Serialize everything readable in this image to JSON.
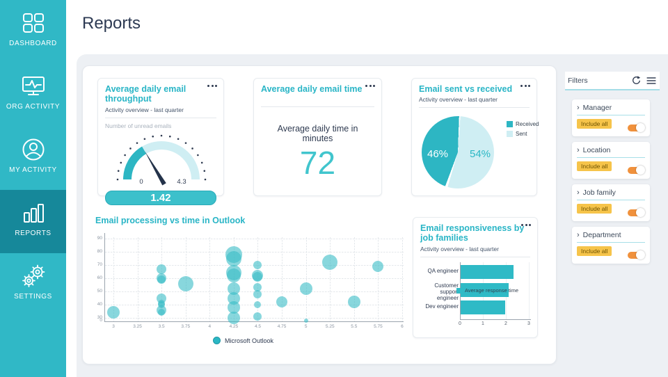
{
  "header": {
    "title": "Reports"
  },
  "sidebar": {
    "items": [
      {
        "label": "DASHBOARD",
        "icon": "dashboard-grid",
        "active": false
      },
      {
        "label": "ORG ACTIVITY",
        "icon": "org-activity-monitor",
        "active": false
      },
      {
        "label": "MY ACTIVITY",
        "icon": "my-activity-user",
        "active": false
      },
      {
        "label": "REPORTS",
        "icon": "reports-bars",
        "active": true
      },
      {
        "label": "SETTINGS",
        "icon": "settings-gears",
        "active": false
      }
    ]
  },
  "cards": {
    "throughput": {
      "title": "Average daily email throughput",
      "subtitle": "Activity overview - last quarter",
      "metric_label": "Number of unread emails",
      "menu_icon": "ellipsis",
      "chart_data": {
        "type": "gauge",
        "min": 0,
        "max": 4.3,
        "value": 1.42,
        "min_label": "0",
        "max_label": "4.3",
        "value_label": "1.42"
      }
    },
    "email_time": {
      "title": "Average daily email time",
      "menu_icon": "ellipsis",
      "label": "Average daily time in minutes",
      "value": "72"
    },
    "sent_received": {
      "title": "Email sent vs received",
      "subtitle": "Activity overview - last quarter",
      "menu_icon": "ellipsis",
      "chart_data": {
        "type": "pie",
        "slices": [
          {
            "label": "Received",
            "value": 46,
            "display": "46%",
            "color": "#2db6c3"
          },
          {
            "label": "Sent",
            "value": 54,
            "display": "54%",
            "color": "#cfeef3"
          }
        ],
        "legend_position": "right"
      }
    },
    "processing": {
      "title": "Email processing vs time in Outlook",
      "legend": "Microsoft Outlook",
      "chart_data": {
        "type": "scatter",
        "series": "Microsoft Outlook",
        "x_ticks": [
          3,
          3.25,
          3.5,
          3.75,
          4,
          4.25,
          4.5,
          4.75,
          5,
          5.25,
          5.5,
          5.75,
          6
        ],
        "y_tick_labels": [
          90,
          80,
          70,
          60,
          50,
          40,
          30
        ],
        "y_origin_label": "0",
        "xlim": [
          3,
          6
        ],
        "grid": true,
        "points": [
          {
            "x": 3,
            "y": 34,
            "r": 9
          },
          {
            "x": 3.5,
            "y": 67,
            "r": 7
          },
          {
            "x": 3.5,
            "y": 60,
            "r": 7
          },
          {
            "x": 3.5,
            "y": 59,
            "r": 6
          },
          {
            "x": 3.5,
            "y": 45,
            "r": 7
          },
          {
            "x": 3.5,
            "y": 41,
            "r": 5
          },
          {
            "x": 3.5,
            "y": 40,
            "r": 5
          },
          {
            "x": 3.5,
            "y": 36,
            "r": 7
          },
          {
            "x": 3.5,
            "y": 34,
            "r": 5
          },
          {
            "x": 3.75,
            "y": 56,
            "r": 11
          },
          {
            "x": 4.25,
            "y": 78,
            "r": 12
          },
          {
            "x": 4.25,
            "y": 75,
            "r": 11
          },
          {
            "x": 4.25,
            "y": 64,
            "r": 11
          },
          {
            "x": 4.25,
            "y": 62,
            "r": 10
          },
          {
            "x": 4.25,
            "y": 52,
            "r": 9
          },
          {
            "x": 4.25,
            "y": 45,
            "r": 9
          },
          {
            "x": 4.25,
            "y": 38,
            "r": 9
          },
          {
            "x": 4.25,
            "y": 30,
            "r": 9
          },
          {
            "x": 4.5,
            "y": 70,
            "r": 6
          },
          {
            "x": 4.5,
            "y": 62,
            "r": 8
          },
          {
            "x": 4.5,
            "y": 61,
            "r": 7
          },
          {
            "x": 4.5,
            "y": 53,
            "r": 6
          },
          {
            "x": 4.5,
            "y": 48,
            "r": 6
          },
          {
            "x": 4.5,
            "y": 40,
            "r": 5
          },
          {
            "x": 4.5,
            "y": 31,
            "r": 6
          },
          {
            "x": 4.75,
            "y": 42,
            "r": 8
          },
          {
            "x": 5,
            "y": 52,
            "r": 9
          },
          {
            "x": 5,
            "y": 27,
            "r": 3
          },
          {
            "x": 5.25,
            "y": 72,
            "r": 11
          },
          {
            "x": 5.5,
            "y": 42,
            "r": 9
          },
          {
            "x": 5.75,
            "y": 69,
            "r": 8
          }
        ]
      }
    },
    "responsiveness": {
      "title": "Email responsiveness by job families",
      "subtitle": "Activity overview - last quarter",
      "menu_icon": "ellipsis",
      "legend": "Average response time",
      "chart_data": {
        "type": "bar",
        "orientation": "horizontal",
        "categories": [
          "QA engineer",
          "Customer support engineer",
          "Dev engineer"
        ],
        "values": [
          2.3,
          2.1,
          1.95
        ],
        "x_ticks": [
          0,
          1,
          2,
          3
        ],
        "xlim": [
          0,
          3
        ]
      }
    }
  },
  "filters": {
    "title": "Filters",
    "icons": {
      "reset": "reset-arrow",
      "menu": "hamburger"
    },
    "groups": [
      {
        "label": "Manager",
        "badge": "Include all",
        "toggle_on": true
      },
      {
        "label": "Location",
        "badge": "Include all",
        "toggle_on": true
      },
      {
        "label": "Job family",
        "badge": "Include all",
        "toggle_on": true
      },
      {
        "label": "Department",
        "badge": "Include all",
        "toggle_on": true
      }
    ]
  },
  "colors": {
    "teal": "#2db6c3",
    "teal_dark": "#16889a",
    "sidebar": "#30b8c6",
    "light_blue": "#cfeef3",
    "navy": "#2e3a50",
    "orange": "#f0913c",
    "yellow": "#f6c44a",
    "background": "#edf0f4"
  }
}
